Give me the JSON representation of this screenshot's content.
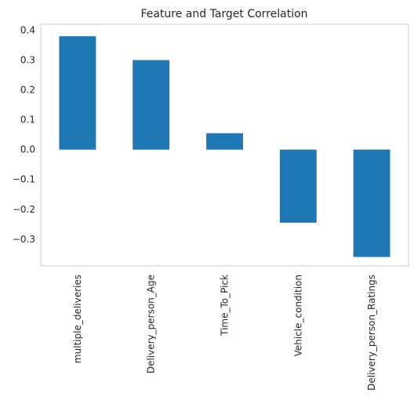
{
  "chart_data": {
    "type": "bar",
    "title": "Feature and Target Correlation",
    "xlabel": "",
    "ylabel": "",
    "categories": [
      "multiple_deliveries",
      "Delivery_person_Age",
      "Time_To_Pick",
      "Vehicle_condition",
      "Delivery_person_Ratings"
    ],
    "values": [
      0.38,
      0.3,
      0.055,
      -0.245,
      -0.36
    ],
    "ylim": [
      -0.39,
      0.42
    ],
    "yticks": [
      0.4,
      0.3,
      0.2,
      0.1,
      0.0,
      -0.1,
      -0.2,
      -0.3
    ],
    "ytick_labels": [
      "0.4",
      "0.3",
      "0.2",
      "0.1",
      "0.0",
      "−0.1",
      "−0.2",
      "−0.3"
    ],
    "grid": false,
    "legend": "none",
    "bar_color": "#1f77b4",
    "frame_color": "#cccccc"
  }
}
